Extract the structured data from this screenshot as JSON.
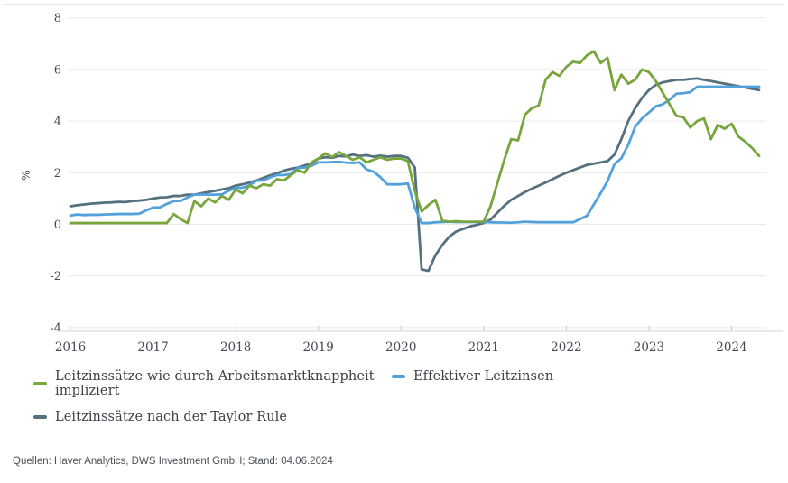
{
  "chart_data": {
    "type": "line",
    "title": "",
    "ylabel": "%",
    "xlabel": "",
    "x_start": "2016-01",
    "x_end": "2024-05",
    "frequency": "monthly",
    "ylim": [
      -4,
      8
    ],
    "grid": "horizontal",
    "legend_position": "bottom",
    "y_ticks": [
      8,
      6,
      4,
      2,
      0,
      -2,
      -4
    ],
    "y_tick_labels": [
      "8",
      "6",
      "4",
      "2",
      "0",
      "-2",
      "-4"
    ],
    "x_tick_labels": [
      "2016",
      "2017",
      "2018",
      "2019",
      "2020",
      "2021",
      "2022",
      "2023",
      "2024"
    ],
    "x_tick_month_index": [
      0,
      12,
      24,
      36,
      48,
      60,
      72,
      84,
      96
    ],
    "series": [
      {
        "name": "Leitzinssätze wie durch Arbeitsmarktknappheit impliziert",
        "color": "#78A63C",
        "values": [
          0.05,
          0.05,
          0.05,
          0.05,
          0.05,
          0.05,
          0.05,
          0.05,
          0.05,
          0.05,
          0.05,
          0.05,
          0.05,
          0.05,
          0.05,
          0.4,
          0.2,
          0.05,
          0.9,
          0.7,
          1.0,
          0.85,
          1.1,
          0.95,
          1.35,
          1.2,
          1.5,
          1.4,
          1.55,
          1.5,
          1.75,
          1.7,
          1.9,
          2.1,
          2.0,
          2.4,
          2.55,
          2.75,
          2.6,
          2.8,
          2.65,
          2.5,
          2.6,
          2.4,
          2.5,
          2.6,
          2.5,
          2.55,
          2.55,
          2.45,
          1.3,
          0.5,
          0.75,
          0.95,
          0.15,
          0.1,
          0.12,
          0.1,
          0.1,
          0.1,
          0.1,
          0.7,
          1.6,
          2.5,
          3.3,
          3.25,
          4.25,
          4.5,
          4.6,
          5.6,
          5.9,
          5.75,
          6.1,
          6.3,
          6.25,
          6.55,
          6.7,
          6.25,
          6.45,
          5.2,
          5.8,
          5.45,
          5.6,
          6.0,
          5.9,
          5.55,
          5.1,
          4.65,
          4.2,
          4.15,
          3.75,
          4.0,
          4.1,
          3.3,
          3.85,
          3.7,
          3.9,
          3.4,
          3.2,
          2.95,
          2.65
        ]
      },
      {
        "name": "Effektiver Leitzinsen",
        "color": "#52A1DB",
        "values": [
          0.34,
          0.38,
          0.36,
          0.37,
          0.37,
          0.38,
          0.39,
          0.4,
          0.4,
          0.4,
          0.41,
          0.54,
          0.65,
          0.66,
          0.79,
          0.9,
          0.91,
          1.04,
          1.15,
          1.16,
          1.15,
          1.15,
          1.16,
          1.3,
          1.41,
          1.42,
          1.51,
          1.69,
          1.7,
          1.82,
          1.91,
          1.91,
          1.95,
          2.19,
          2.2,
          2.27,
          2.4,
          2.4,
          2.41,
          2.42,
          2.39,
          2.38,
          2.4,
          2.13,
          2.04,
          1.83,
          1.55,
          1.55,
          1.55,
          1.58,
          0.65,
          0.05,
          0.05,
          0.08,
          0.09,
          0.1,
          0.09,
          0.09,
          0.09,
          0.09,
          0.09,
          0.08,
          0.07,
          0.07,
          0.06,
          0.08,
          0.1,
          0.09,
          0.08,
          0.08,
          0.08,
          0.08,
          0.08,
          0.08,
          0.2,
          0.33,
          0.77,
          1.21,
          1.68,
          2.33,
          2.56,
          3.08,
          3.78,
          4.1,
          4.33,
          4.57,
          4.65,
          4.83,
          5.06,
          5.08,
          5.12,
          5.33,
          5.33,
          5.33,
          5.33,
          5.33,
          5.33,
          5.33,
          5.33,
          5.33,
          5.33
        ]
      },
      {
        "name": "Leitzinssätze nach der Taylor Rule",
        "color": "#55707E",
        "values": [
          0.7,
          0.74,
          0.77,
          0.8,
          0.82,
          0.84,
          0.85,
          0.87,
          0.86,
          0.9,
          0.92,
          0.95,
          1.0,
          1.04,
          1.05,
          1.1,
          1.1,
          1.15,
          1.15,
          1.2,
          1.25,
          1.3,
          1.35,
          1.4,
          1.5,
          1.55,
          1.62,
          1.7,
          1.8,
          1.9,
          1.98,
          2.08,
          2.15,
          2.2,
          2.28,
          2.35,
          2.55,
          2.6,
          2.58,
          2.65,
          2.63,
          2.7,
          2.65,
          2.68,
          2.62,
          2.66,
          2.62,
          2.65,
          2.65,
          2.58,
          2.2,
          -1.75,
          -1.8,
          -1.2,
          -0.8,
          -0.48,
          -0.28,
          -0.18,
          -0.08,
          -0.02,
          0.05,
          0.18,
          0.45,
          0.72,
          0.95,
          1.1,
          1.25,
          1.38,
          1.5,
          1.62,
          1.75,
          1.88,
          2.0,
          2.1,
          2.2,
          2.3,
          2.35,
          2.4,
          2.45,
          2.7,
          3.3,
          4.0,
          4.5,
          4.9,
          5.2,
          5.4,
          5.5,
          5.55,
          5.6,
          5.6,
          5.63,
          5.65,
          5.6,
          5.55,
          5.5,
          5.45,
          5.4,
          5.35,
          5.3,
          5.25,
          5.2
        ]
      }
    ]
  },
  "colors": {
    "grid": "#e9e9e9",
    "axis_line": "#d6d6d6",
    "tick": "#cfcfcf",
    "axis_text": "#434a52",
    "legend_text": "#3b4149",
    "footer_text": "#4b5157"
  },
  "footer": {
    "source": "Quellen: Haver Analytics, DWS Investment GmbH; Stand: 04.06.2024"
  }
}
